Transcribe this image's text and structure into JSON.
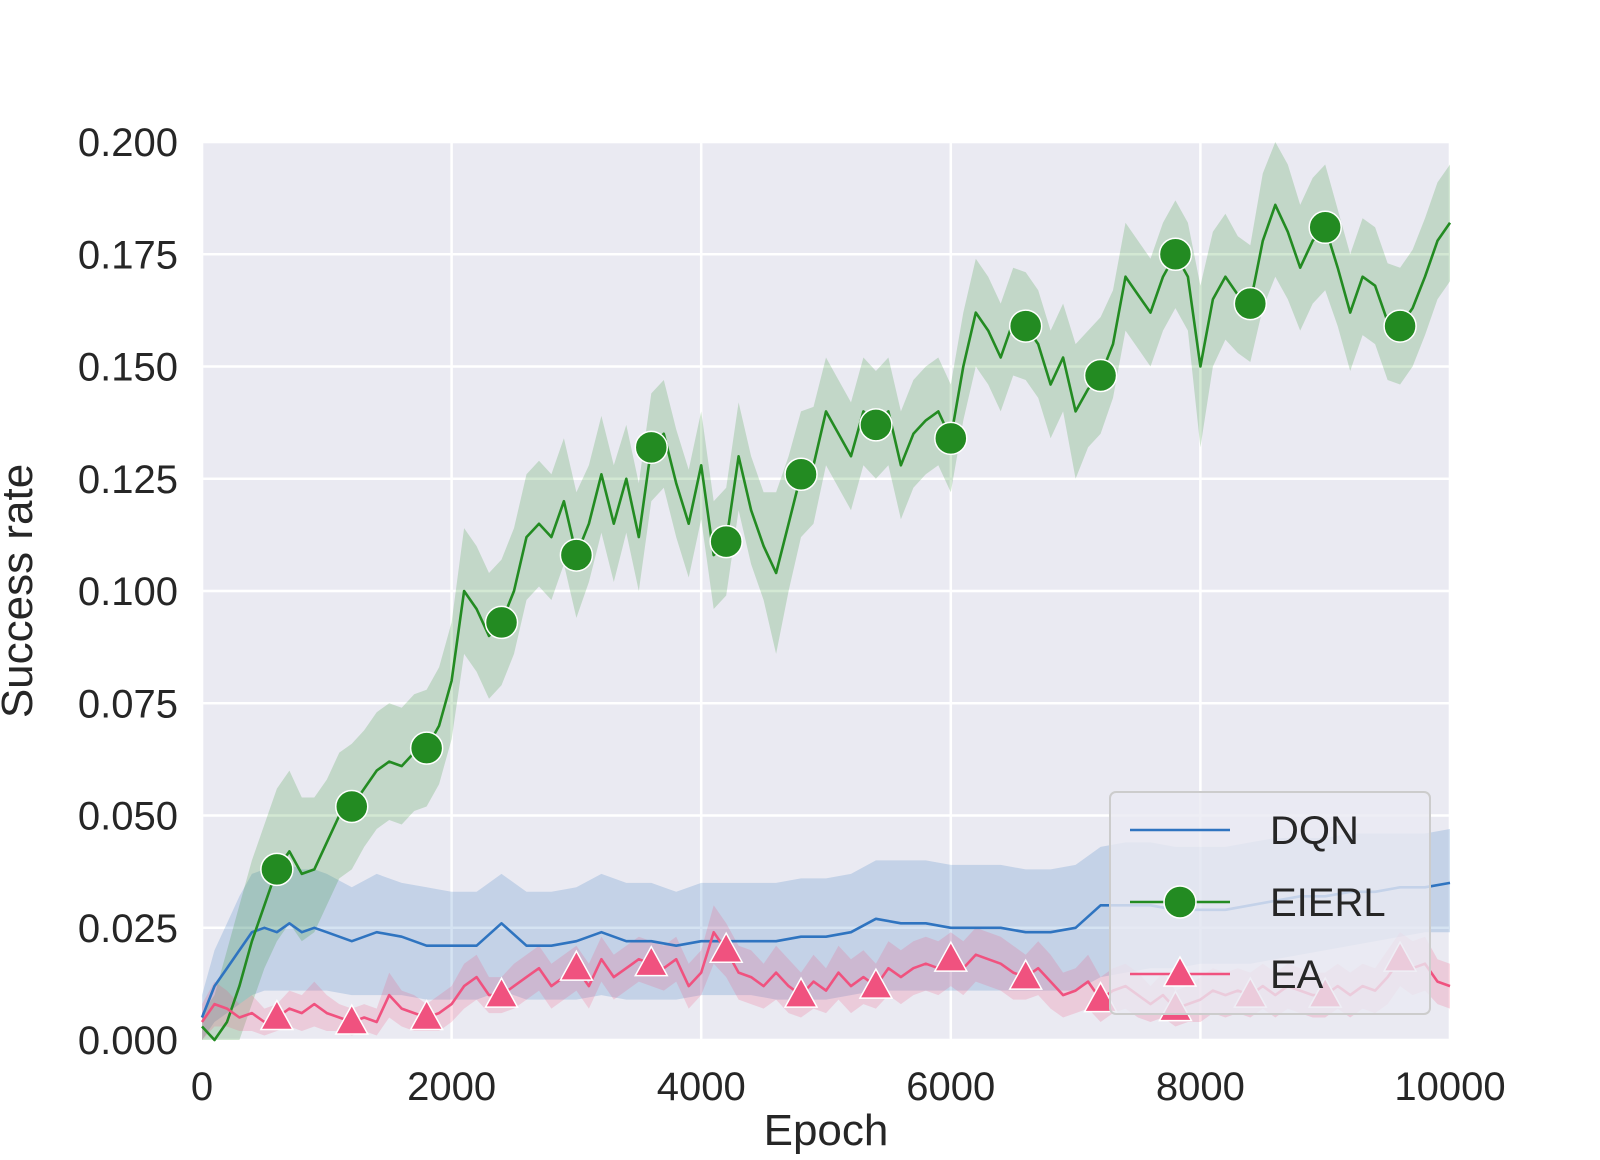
{
  "chart_data": {
    "type": "line",
    "xlabel": "Epoch",
    "ylabel": "Success rate",
    "xlim": [
      0,
      10000
    ],
    "ylim": [
      0,
      0.2
    ],
    "x_ticks": [
      "0",
      "2000",
      "4000",
      "6000",
      "8000",
      "10000"
    ],
    "y_ticks": [
      "0.000",
      "0.025",
      "0.050",
      "0.075",
      "0.100",
      "0.125",
      "0.150",
      "0.175",
      "0.200"
    ],
    "grid": true,
    "legend_position": "lower-right",
    "series": [
      {
        "name": "DQN",
        "color": "#2f74c0",
        "marker": "none",
        "x": [
          0,
          100,
          200,
          300,
          400,
          500,
          600,
          700,
          800,
          900,
          1000,
          1200,
          1400,
          1600,
          1800,
          2000,
          2200,
          2400,
          2600,
          2800,
          3000,
          3200,
          3400,
          3600,
          3800,
          4000,
          4200,
          4400,
          4600,
          4800,
          5000,
          5200,
          5400,
          5600,
          5800,
          6000,
          6200,
          6400,
          6600,
          6800,
          7000,
          7200,
          7400,
          7600,
          7800,
          8000,
          8200,
          8400,
          8600,
          8800,
          9000,
          9200,
          9400,
          9600,
          9800,
          10000
        ],
        "y": [
          0.005,
          0.012,
          0.016,
          0.02,
          0.024,
          0.025,
          0.024,
          0.026,
          0.024,
          0.025,
          0.024,
          0.022,
          0.024,
          0.023,
          0.021,
          0.021,
          0.021,
          0.026,
          0.021,
          0.021,
          0.022,
          0.024,
          0.022,
          0.022,
          0.021,
          0.022,
          0.022,
          0.022,
          0.022,
          0.023,
          0.023,
          0.024,
          0.027,
          0.026,
          0.026,
          0.025,
          0.025,
          0.025,
          0.024,
          0.024,
          0.025,
          0.03,
          0.03,
          0.03,
          0.029,
          0.029,
          0.029,
          0.03,
          0.031,
          0.032,
          0.032,
          0.033,
          0.033,
          0.034,
          0.034,
          0.035
        ],
        "lower": [
          0.0,
          0.004,
          0.006,
          0.008,
          0.01,
          0.011,
          0.011,
          0.011,
          0.011,
          0.011,
          0.011,
          0.01,
          0.01,
          0.01,
          0.009,
          0.009,
          0.009,
          0.011,
          0.009,
          0.009,
          0.009,
          0.01,
          0.009,
          0.009,
          0.009,
          0.01,
          0.01,
          0.01,
          0.009,
          0.009,
          0.009,
          0.01,
          0.011,
          0.011,
          0.011,
          0.011,
          0.011,
          0.011,
          0.011,
          0.011,
          0.011,
          0.014,
          0.015,
          0.016,
          0.016,
          0.017,
          0.017,
          0.017,
          0.018,
          0.019,
          0.02,
          0.021,
          0.022,
          0.023,
          0.024,
          0.024
        ],
        "upper": [
          0.01,
          0.02,
          0.026,
          0.032,
          0.037,
          0.038,
          0.037,
          0.039,
          0.038,
          0.038,
          0.037,
          0.034,
          0.037,
          0.035,
          0.034,
          0.033,
          0.033,
          0.037,
          0.033,
          0.033,
          0.034,
          0.037,
          0.035,
          0.035,
          0.033,
          0.035,
          0.035,
          0.035,
          0.035,
          0.036,
          0.036,
          0.037,
          0.04,
          0.04,
          0.04,
          0.039,
          0.039,
          0.039,
          0.038,
          0.038,
          0.039,
          0.043,
          0.044,
          0.044,
          0.043,
          0.043,
          0.043,
          0.044,
          0.045,
          0.045,
          0.045,
          0.046,
          0.046,
          0.046,
          0.046,
          0.047
        ]
      },
      {
        "name": "EIERL",
        "color": "#238b22",
        "marker": "circle",
        "marker_x": [
          600,
          1200,
          1800,
          2400,
          3000,
          3600,
          4200,
          4800,
          5400,
          6000,
          6600,
          7200,
          7800,
          8400,
          9000,
          9600
        ],
        "marker_y": [
          0.038,
          0.052,
          0.065,
          0.093,
          0.108,
          0.132,
          0.111,
          0.126,
          0.137,
          0.134,
          0.159,
          0.148,
          0.175,
          0.164,
          0.181,
          0.159
        ],
        "x": [
          0,
          100,
          200,
          300,
          400,
          500,
          600,
          700,
          800,
          900,
          1000,
          1100,
          1200,
          1300,
          1400,
          1500,
          1600,
          1700,
          1800,
          1900,
          2000,
          2100,
          2200,
          2300,
          2400,
          2500,
          2600,
          2700,
          2800,
          2900,
          3000,
          3100,
          3200,
          3300,
          3400,
          3500,
          3600,
          3700,
          3800,
          3900,
          4000,
          4100,
          4200,
          4300,
          4400,
          4500,
          4600,
          4700,
          4800,
          4900,
          5000,
          5100,
          5200,
          5300,
          5400,
          5500,
          5600,
          5700,
          5800,
          5900,
          6000,
          6100,
          6200,
          6300,
          6400,
          6500,
          6600,
          6700,
          6800,
          6900,
          7000,
          7100,
          7200,
          7300,
          7400,
          7500,
          7600,
          7700,
          7800,
          7900,
          8000,
          8100,
          8200,
          8300,
          8400,
          8500,
          8600,
          8700,
          8800,
          8900,
          9000,
          9100,
          9200,
          9300,
          9400,
          9500,
          9600,
          9700,
          9800,
          9900,
          10000
        ],
        "y": [
          0.003,
          0.0,
          0.004,
          0.012,
          0.022,
          0.03,
          0.038,
          0.042,
          0.037,
          0.038,
          0.044,
          0.05,
          0.052,
          0.056,
          0.06,
          0.062,
          0.061,
          0.064,
          0.065,
          0.07,
          0.08,
          0.1,
          0.096,
          0.09,
          0.093,
          0.1,
          0.112,
          0.115,
          0.112,
          0.12,
          0.108,
          0.115,
          0.126,
          0.115,
          0.125,
          0.112,
          0.132,
          0.135,
          0.124,
          0.115,
          0.128,
          0.108,
          0.111,
          0.13,
          0.118,
          0.11,
          0.104,
          0.115,
          0.126,
          0.128,
          0.14,
          0.135,
          0.13,
          0.14,
          0.137,
          0.14,
          0.128,
          0.135,
          0.138,
          0.14,
          0.134,
          0.15,
          0.162,
          0.158,
          0.152,
          0.16,
          0.159,
          0.155,
          0.146,
          0.152,
          0.14,
          0.145,
          0.148,
          0.155,
          0.17,
          0.166,
          0.162,
          0.17,
          0.175,
          0.17,
          0.15,
          0.165,
          0.17,
          0.166,
          0.164,
          0.178,
          0.186,
          0.18,
          0.172,
          0.178,
          0.181,
          0.172,
          0.162,
          0.17,
          0.168,
          0.16,
          0.159,
          0.163,
          0.17,
          0.178,
          0.182
        ],
        "lower": [
          0.0,
          0.0,
          0.0,
          0.0,
          0.008,
          0.016,
          0.022,
          0.026,
          0.022,
          0.024,
          0.03,
          0.036,
          0.038,
          0.043,
          0.047,
          0.049,
          0.048,
          0.051,
          0.052,
          0.057,
          0.067,
          0.086,
          0.082,
          0.076,
          0.079,
          0.086,
          0.098,
          0.101,
          0.098,
          0.106,
          0.094,
          0.102,
          0.113,
          0.102,
          0.113,
          0.1,
          0.12,
          0.123,
          0.112,
          0.103,
          0.116,
          0.096,
          0.099,
          0.118,
          0.106,
          0.098,
          0.086,
          0.1,
          0.112,
          0.115,
          0.128,
          0.123,
          0.118,
          0.128,
          0.125,
          0.128,
          0.116,
          0.123,
          0.126,
          0.128,
          0.122,
          0.138,
          0.15,
          0.146,
          0.14,
          0.148,
          0.147,
          0.143,
          0.134,
          0.14,
          0.125,
          0.132,
          0.135,
          0.143,
          0.158,
          0.154,
          0.15,
          0.158,
          0.163,
          0.158,
          0.132,
          0.15,
          0.156,
          0.153,
          0.151,
          0.163,
          0.17,
          0.165,
          0.158,
          0.164,
          0.167,
          0.159,
          0.149,
          0.157,
          0.155,
          0.147,
          0.146,
          0.15,
          0.157,
          0.165,
          0.169
        ],
        "upper": [
          0.006,
          0.01,
          0.02,
          0.03,
          0.04,
          0.048,
          0.056,
          0.06,
          0.054,
          0.054,
          0.058,
          0.064,
          0.066,
          0.069,
          0.073,
          0.075,
          0.074,
          0.077,
          0.078,
          0.083,
          0.093,
          0.114,
          0.11,
          0.104,
          0.107,
          0.114,
          0.126,
          0.129,
          0.126,
          0.134,
          0.122,
          0.128,
          0.139,
          0.128,
          0.137,
          0.124,
          0.144,
          0.147,
          0.136,
          0.127,
          0.14,
          0.12,
          0.123,
          0.142,
          0.13,
          0.122,
          0.122,
          0.13,
          0.14,
          0.141,
          0.152,
          0.147,
          0.142,
          0.152,
          0.149,
          0.152,
          0.14,
          0.147,
          0.15,
          0.152,
          0.146,
          0.162,
          0.174,
          0.17,
          0.164,
          0.172,
          0.171,
          0.167,
          0.158,
          0.164,
          0.155,
          0.158,
          0.161,
          0.167,
          0.182,
          0.178,
          0.174,
          0.182,
          0.187,
          0.182,
          0.168,
          0.18,
          0.184,
          0.179,
          0.177,
          0.193,
          0.2,
          0.195,
          0.186,
          0.192,
          0.195,
          0.185,
          0.175,
          0.183,
          0.181,
          0.173,
          0.172,
          0.176,
          0.183,
          0.191,
          0.195
        ]
      },
      {
        "name": "EA",
        "color": "#f0527f",
        "marker": "triangle",
        "marker_x": [
          600,
          1200,
          1800,
          2400,
          3000,
          3600,
          4200,
          4800,
          5400,
          6000,
          6600,
          7200,
          7800,
          8400,
          9000,
          9600
        ],
        "marker_y": [
          0.005,
          0.004,
          0.005,
          0.01,
          0.016,
          0.017,
          0.02,
          0.01,
          0.012,
          0.018,
          0.014,
          0.009,
          0.007,
          0.01,
          0.01,
          0.018
        ],
        "x": [
          0,
          100,
          200,
          300,
          400,
          500,
          600,
          700,
          800,
          900,
          1000,
          1100,
          1200,
          1300,
          1400,
          1500,
          1600,
          1700,
          1800,
          1900,
          2000,
          2100,
          2200,
          2300,
          2400,
          2500,
          2600,
          2700,
          2800,
          2900,
          3000,
          3100,
          3200,
          3300,
          3400,
          3500,
          3600,
          3700,
          3800,
          3900,
          4000,
          4100,
          4200,
          4300,
          4400,
          4500,
          4600,
          4700,
          4800,
          4900,
          5000,
          5100,
          5200,
          5300,
          5400,
          5500,
          5600,
          5700,
          5800,
          5900,
          6000,
          6100,
          6200,
          6300,
          6400,
          6500,
          6600,
          6700,
          6800,
          6900,
          7000,
          7100,
          7200,
          7300,
          7400,
          7500,
          7600,
          7700,
          7800,
          7900,
          8000,
          8100,
          8200,
          8300,
          8400,
          8500,
          8600,
          8700,
          8800,
          8900,
          9000,
          9100,
          9200,
          9300,
          9400,
          9500,
          9600,
          9700,
          9800,
          9900,
          10000
        ],
        "y": [
          0.004,
          0.008,
          0.007,
          0.005,
          0.006,
          0.004,
          0.005,
          0.007,
          0.006,
          0.008,
          0.006,
          0.005,
          0.004,
          0.005,
          0.004,
          0.01,
          0.007,
          0.006,
          0.005,
          0.006,
          0.008,
          0.012,
          0.014,
          0.01,
          0.01,
          0.012,
          0.014,
          0.016,
          0.012,
          0.014,
          0.016,
          0.012,
          0.018,
          0.014,
          0.016,
          0.018,
          0.017,
          0.016,
          0.018,
          0.012,
          0.015,
          0.024,
          0.02,
          0.015,
          0.014,
          0.012,
          0.015,
          0.012,
          0.01,
          0.013,
          0.011,
          0.015,
          0.012,
          0.014,
          0.012,
          0.016,
          0.014,
          0.016,
          0.017,
          0.016,
          0.018,
          0.016,
          0.019,
          0.018,
          0.017,
          0.015,
          0.014,
          0.016,
          0.013,
          0.01,
          0.011,
          0.013,
          0.009,
          0.011,
          0.012,
          0.01,
          0.008,
          0.01,
          0.007,
          0.008,
          0.009,
          0.011,
          0.01,
          0.011,
          0.01,
          0.012,
          0.01,
          0.012,
          0.011,
          0.01,
          0.01,
          0.012,
          0.01,
          0.012,
          0.011,
          0.014,
          0.018,
          0.016,
          0.017,
          0.013,
          0.012
        ],
        "lower": [
          0.0,
          0.003,
          0.003,
          0.002,
          0.002,
          0.001,
          0.002,
          0.003,
          0.002,
          0.003,
          0.002,
          0.002,
          0.001,
          0.002,
          0.001,
          0.005,
          0.003,
          0.002,
          0.002,
          0.002,
          0.004,
          0.007,
          0.009,
          0.006,
          0.006,
          0.007,
          0.009,
          0.011,
          0.007,
          0.009,
          0.011,
          0.007,
          0.013,
          0.009,
          0.011,
          0.013,
          0.012,
          0.011,
          0.013,
          0.007,
          0.01,
          0.017,
          0.014,
          0.009,
          0.008,
          0.007,
          0.009,
          0.006,
          0.005,
          0.007,
          0.006,
          0.009,
          0.006,
          0.008,
          0.007,
          0.01,
          0.008,
          0.01,
          0.011,
          0.01,
          0.012,
          0.01,
          0.013,
          0.012,
          0.011,
          0.009,
          0.009,
          0.01,
          0.007,
          0.005,
          0.006,
          0.007,
          0.004,
          0.006,
          0.007,
          0.005,
          0.004,
          0.005,
          0.003,
          0.004,
          0.004,
          0.006,
          0.005,
          0.006,
          0.005,
          0.007,
          0.005,
          0.007,
          0.006,
          0.005,
          0.005,
          0.007,
          0.005,
          0.007,
          0.006,
          0.008,
          0.012,
          0.01,
          0.011,
          0.008,
          0.007
        ],
        "upper": [
          0.008,
          0.013,
          0.011,
          0.008,
          0.01,
          0.007,
          0.008,
          0.011,
          0.01,
          0.013,
          0.01,
          0.008,
          0.007,
          0.008,
          0.007,
          0.015,
          0.011,
          0.01,
          0.008,
          0.01,
          0.012,
          0.017,
          0.019,
          0.014,
          0.014,
          0.017,
          0.019,
          0.021,
          0.017,
          0.019,
          0.021,
          0.017,
          0.023,
          0.019,
          0.021,
          0.023,
          0.022,
          0.021,
          0.023,
          0.017,
          0.02,
          0.03,
          0.026,
          0.021,
          0.02,
          0.017,
          0.021,
          0.018,
          0.015,
          0.019,
          0.016,
          0.021,
          0.018,
          0.02,
          0.017,
          0.022,
          0.02,
          0.022,
          0.023,
          0.022,
          0.024,
          0.022,
          0.025,
          0.024,
          0.023,
          0.021,
          0.019,
          0.022,
          0.019,
          0.015,
          0.016,
          0.019,
          0.014,
          0.016,
          0.017,
          0.015,
          0.012,
          0.015,
          0.011,
          0.012,
          0.014,
          0.016,
          0.015,
          0.016,
          0.015,
          0.017,
          0.015,
          0.017,
          0.016,
          0.015,
          0.015,
          0.017,
          0.015,
          0.017,
          0.016,
          0.02,
          0.024,
          0.022,
          0.023,
          0.018,
          0.017
        ]
      }
    ]
  }
}
